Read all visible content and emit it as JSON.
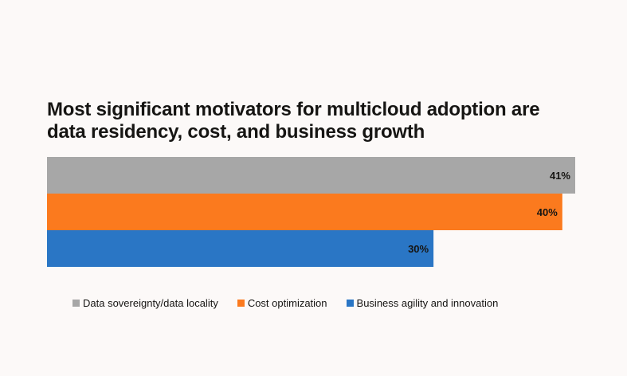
{
  "colors": {
    "background": "#fcf9f8",
    "text": "#161513"
  },
  "chart_data": {
    "type": "bar",
    "orientation": "horizontal",
    "title_lines": [
      "Most significant motivators for multicloud adoption are",
      "data residency, cost, and business growth"
    ],
    "categories": [
      "Data sovereignty/data locality",
      "Cost optimization",
      "Business agility and innovation"
    ],
    "values": [
      41,
      40,
      30
    ],
    "value_labels": [
      "41%",
      "40%",
      "30%"
    ],
    "colors": [
      "#a7a7a7",
      "#fb7a1e",
      "#2a76c5"
    ],
    "xlim": [
      0,
      41
    ],
    "grid": false,
    "legend": "bottom"
  }
}
